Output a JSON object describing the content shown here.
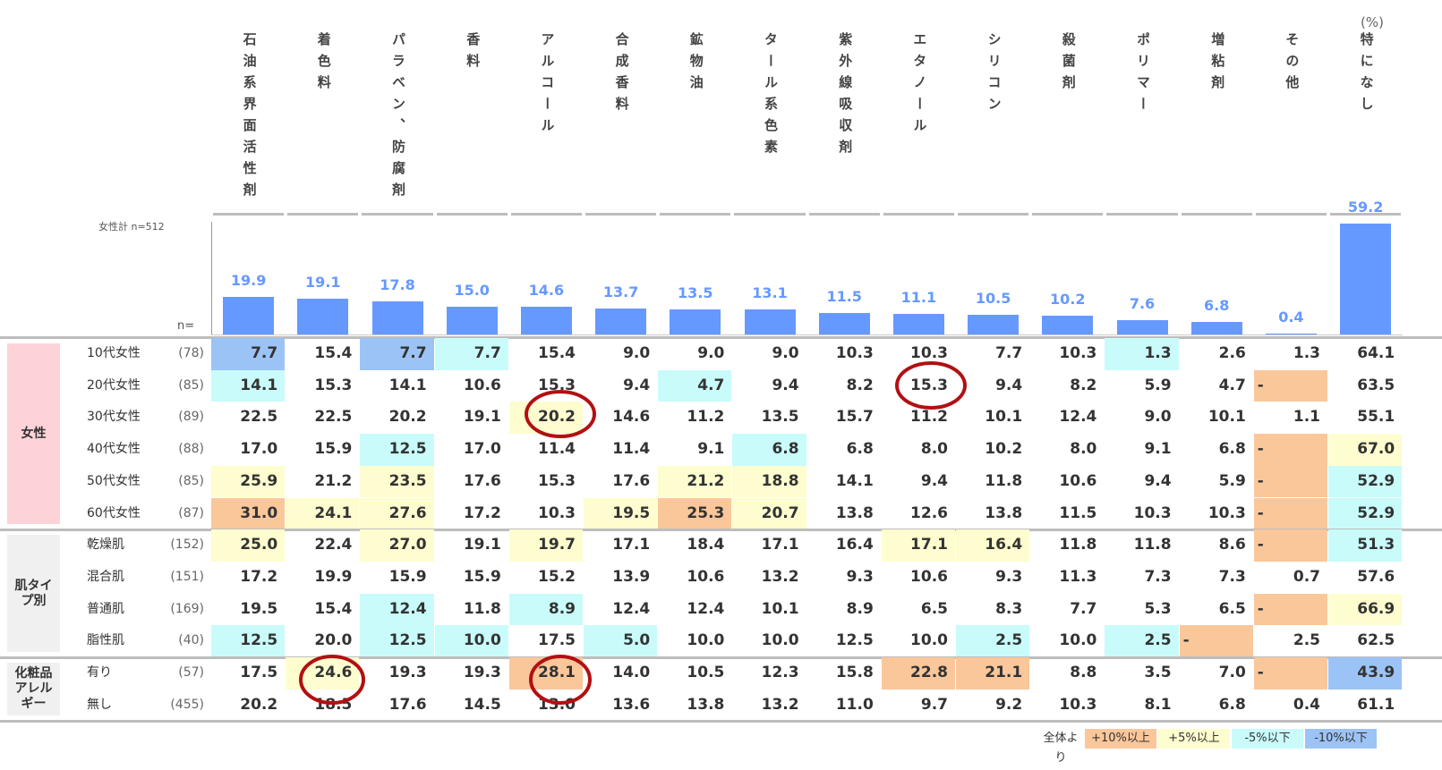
{
  "unit_label": "(%)",
  "chart_data": {
    "type": "bar",
    "subtitle": "女性計 n=512",
    "categories": [
      "石油系界面活性剤",
      "着色料",
      "パラベン、防腐剤",
      "香料",
      "アルコール",
      "合成香料",
      "鉱物油",
      "タール系色素",
      "紫外線吸収剤",
      "エタノール",
      "シリコン",
      "殺菌剤",
      "ポリマー",
      "増粘剤",
      "その他",
      "特になし"
    ],
    "values": [
      19.9,
      19.1,
      17.8,
      15.0,
      14.6,
      13.7,
      13.5,
      13.1,
      11.5,
      11.1,
      10.5,
      10.2,
      7.6,
      6.8,
      0.4,
      59.2
    ],
    "value_labels": [
      "19.9",
      "19.1",
      "17.8",
      "15.0",
      "14.6",
      "13.7",
      "13.5",
      "13.1",
      "11.5",
      "11.1",
      "10.5",
      "10.2",
      "7.6",
      "6.8",
      "0.4",
      "59.2"
    ],
    "color": "#6699ff",
    "ylim": [
      0,
      60
    ]
  },
  "table": {
    "n_header": "n=",
    "groups": [
      {
        "label": "女性",
        "color": "#fdd3d8",
        "rows": [
          {
            "label": "10代女性",
            "n": "(78)",
            "cells": [
              "7.7",
              "15.4",
              "7.7",
              "7.7",
              "15.4",
              "9.0",
              "9.0",
              "9.0",
              "10.3",
              "10.3",
              "7.7",
              "10.3",
              "1.3",
              "2.6",
              "1.3",
              "64.1"
            ],
            "fills": [
              "#9cc3f5",
              null,
              "#9cc3f5",
              "#c9fbfb",
              null,
              null,
              null,
              null,
              null,
              null,
              null,
              null,
              "#c9fbfb",
              null,
              null,
              null
            ]
          },
          {
            "label": "20代女性",
            "n": "(85)",
            "cells": [
              "14.1",
              "15.3",
              "14.1",
              "10.6",
              "15.3",
              "9.4",
              "4.7",
              "9.4",
              "8.2",
              "15.3",
              "9.4",
              "8.2",
              "5.9",
              "4.7",
              "-",
              "63.5"
            ],
            "fills": [
              "#c9fbfb",
              null,
              null,
              null,
              null,
              null,
              "#c9fbfb",
              null,
              null,
              null,
              null,
              null,
              null,
              null,
              "#fac79b",
              null
            ]
          },
          {
            "label": "30代女性",
            "n": "(89)",
            "cells": [
              "22.5",
              "22.5",
              "20.2",
              "19.1",
              "20.2",
              "14.6",
              "11.2",
              "13.5",
              "15.7",
              "11.2",
              "10.1",
              "12.4",
              "9.0",
              "10.1",
              "1.1",
              "55.1"
            ],
            "fills": [
              null,
              null,
              null,
              null,
              "#fefdcf",
              null,
              null,
              null,
              null,
              null,
              null,
              null,
              null,
              null,
              null,
              null
            ]
          },
          {
            "label": "40代女性",
            "n": "(88)",
            "cells": [
              "17.0",
              "15.9",
              "12.5",
              "17.0",
              "11.4",
              "11.4",
              "9.1",
              "6.8",
              "6.8",
              "8.0",
              "10.2",
              "8.0",
              "9.1",
              "6.8",
              "-",
              "67.0"
            ],
            "fills": [
              null,
              null,
              "#c9fbfb",
              null,
              null,
              null,
              null,
              "#c9fbfb",
              null,
              null,
              null,
              null,
              null,
              null,
              "#fac79b",
              "#fefdcf"
            ]
          },
          {
            "label": "50代女性",
            "n": "(85)",
            "cells": [
              "25.9",
              "21.2",
              "23.5",
              "17.6",
              "15.3",
              "17.6",
              "21.2",
              "18.8",
              "14.1",
              "9.4",
              "11.8",
              "10.6",
              "9.4",
              "5.9",
              "-",
              "52.9"
            ],
            "fills": [
              "#fefdcf",
              null,
              "#fefdcf",
              null,
              null,
              null,
              "#fefdcf",
              "#fefdcf",
              null,
              null,
              null,
              null,
              null,
              null,
              "#fac79b",
              "#c9fbfb"
            ]
          },
          {
            "label": "60代女性",
            "n": "(87)",
            "cells": [
              "31.0",
              "24.1",
              "27.6",
              "17.2",
              "10.3",
              "19.5",
              "25.3",
              "20.7",
              "13.8",
              "12.6",
              "13.8",
              "11.5",
              "10.3",
              "10.3",
              "-",
              "52.9"
            ],
            "fills": [
              "#fac79b",
              "#fefdcf",
              "#fefdcf",
              null,
              null,
              "#fefdcf",
              "#fac79b",
              "#fefdcf",
              null,
              null,
              null,
              null,
              null,
              null,
              "#fac79b",
              "#c9fbfb"
            ]
          }
        ]
      },
      {
        "label": "肌タイプ別",
        "color": "#f0f0f0",
        "rows": [
          {
            "label": "乾燥肌",
            "n": "(152)",
            "cells": [
              "25.0",
              "22.4",
              "27.0",
              "19.1",
              "19.7",
              "17.1",
              "18.4",
              "17.1",
              "16.4",
              "17.1",
              "16.4",
              "11.8",
              "11.8",
              "8.6",
              "-",
              "51.3"
            ],
            "fills": [
              "#fefdcf",
              null,
              "#fefdcf",
              null,
              "#fefdcf",
              null,
              null,
              null,
              null,
              "#fefdcf",
              "#fefdcf",
              null,
              null,
              null,
              "#fac79b",
              "#c9fbfb"
            ]
          },
          {
            "label": "混合肌",
            "n": "(151)",
            "cells": [
              "17.2",
              "19.9",
              "15.9",
              "15.9",
              "15.2",
              "13.9",
              "10.6",
              "13.2",
              "9.3",
              "10.6",
              "9.3",
              "11.3",
              "7.3",
              "7.3",
              "0.7",
              "57.6"
            ],
            "fills": [
              null,
              null,
              null,
              null,
              null,
              null,
              null,
              null,
              null,
              null,
              null,
              null,
              null,
              null,
              null,
              null
            ]
          },
          {
            "label": "普通肌",
            "n": "(169)",
            "cells": [
              "19.5",
              "15.4",
              "12.4",
              "11.8",
              "8.9",
              "12.4",
              "12.4",
              "10.1",
              "8.9",
              "6.5",
              "8.3",
              "7.7",
              "5.3",
              "6.5",
              "-",
              "66.9"
            ],
            "fills": [
              null,
              null,
              "#c9fbfb",
              null,
              "#c9fbfb",
              null,
              null,
              null,
              null,
              null,
              null,
              null,
              null,
              null,
              "#fac79b",
              "#fefdcf"
            ]
          },
          {
            "label": "脂性肌",
            "n": "(40)",
            "cells": [
              "12.5",
              "20.0",
              "12.5",
              "10.0",
              "17.5",
              "5.0",
              "10.0",
              "10.0",
              "12.5",
              "10.0",
              "2.5",
              "10.0",
              "2.5",
              "-",
              "2.5",
              "62.5"
            ],
            "fills": [
              "#c9fbfb",
              null,
              "#c9fbfb",
              "#c9fbfb",
              null,
              "#c9fbfb",
              null,
              null,
              null,
              null,
              "#c9fbfb",
              null,
              "#c9fbfb",
              "#fac79b",
              null,
              null
            ]
          }
        ]
      },
      {
        "label": "化粧品アレルギー",
        "color": "#f0f0f0",
        "rows": [
          {
            "label": "有り",
            "n": "(57)",
            "cells": [
              "17.5",
              "24.6",
              "19.3",
              "19.3",
              "28.1",
              "14.0",
              "10.5",
              "12.3",
              "15.8",
              "22.8",
              "21.1",
              "8.8",
              "3.5",
              "7.0",
              "-",
              "43.9"
            ],
            "fills": [
              null,
              "#fefdcf",
              null,
              null,
              "#fac79b",
              null,
              null,
              null,
              null,
              "#fac79b",
              "#fac79b",
              null,
              null,
              null,
              "#fac79b",
              "#9cc3f5"
            ]
          },
          {
            "label": "無し",
            "n": "(455)",
            "cells": [
              "20.2",
              "18.5",
              "17.6",
              "14.5",
              "13.0",
              "13.6",
              "13.8",
              "13.2",
              "11.0",
              "9.7",
              "9.2",
              "10.3",
              "8.1",
              "6.8",
              "0.4",
              "61.1"
            ],
            "fills": [
              null,
              null,
              null,
              null,
              null,
              null,
              null,
              null,
              null,
              null,
              null,
              null,
              null,
              null,
              null,
              null
            ]
          }
        ]
      }
    ]
  },
  "legend": {
    "title": "全体より",
    "items": [
      {
        "label": "+10%以上",
        "color": "#fac79b"
      },
      {
        "label": "+5%以上",
        "color": "#fefdcf"
      },
      {
        "label": "-5%以下",
        "color": "#c9fbfb"
      },
      {
        "label": "-10%以下",
        "color": "#9cc3f5"
      }
    ]
  }
}
